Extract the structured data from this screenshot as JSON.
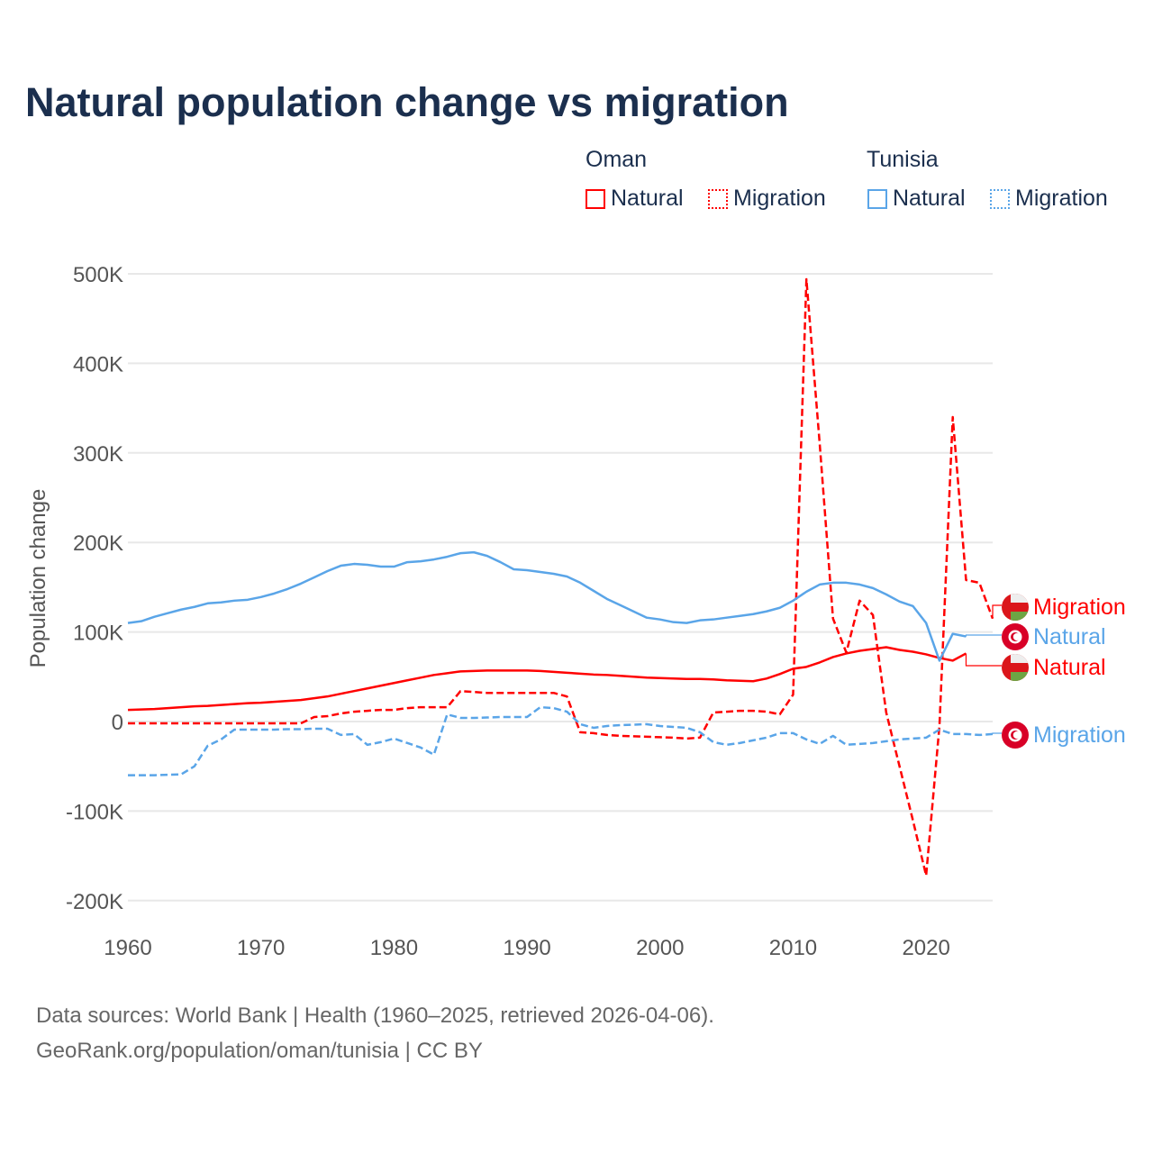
{
  "title": "Natural population change vs migration",
  "legend": {
    "groups": [
      {
        "name": "Oman",
        "color": "#ff0000",
        "items": [
          "Natural",
          "Migration"
        ]
      },
      {
        "name": "Tunisia",
        "color": "#5aa5e8",
        "items": [
          "Natural",
          "Migration"
        ]
      }
    ]
  },
  "footer": {
    "line1": "Data sources: World Bank | Health (1960–2025, retrieved 2026-04-06).",
    "line2": "GeoRank.org/population/oman/tunisia | CC BY"
  },
  "chart_data": {
    "type": "line",
    "title": "Natural population change vs migration",
    "xlabel": "",
    "ylabel": "Population change",
    "xlim": [
      1960,
      2025
    ],
    "ylim": [
      -200000,
      500000
    ],
    "xticks": [
      1960,
      1970,
      1980,
      1990,
      2000,
      2010,
      2020
    ],
    "yticks": [
      {
        "v": -200000,
        "label": "-200K"
      },
      {
        "v": -100000,
        "label": "-100K"
      },
      {
        "v": 0,
        "label": "0"
      },
      {
        "v": 100000,
        "label": "100K"
      },
      {
        "v": 200000,
        "label": "200K"
      },
      {
        "v": 300000,
        "label": "300K"
      },
      {
        "v": 400000,
        "label": "400K"
      },
      {
        "v": 500000,
        "label": "500K"
      }
    ],
    "grid": true,
    "legend_placement": "top-right",
    "series": [
      {
        "name": "Oman Natural",
        "country": "Oman",
        "label": "Natural",
        "color": "#ff0000",
        "dash": false,
        "flag": "oman",
        "start": 1960,
        "values": [
          13,
          13.5,
          14,
          15,
          16,
          17,
          17.5,
          18.5,
          19.5,
          20.5,
          21,
          22,
          23,
          24,
          26,
          28,
          31,
          34,
          37,
          40,
          43,
          46,
          49,
          52,
          54,
          56,
          56.5,
          57,
          57,
          57,
          57,
          56.5,
          55.5,
          54.5,
          53.5,
          52.5,
          52,
          51,
          50,
          49,
          48.5,
          48,
          47.5,
          47.5,
          47,
          46,
          45.5,
          45,
          48,
          53,
          59,
          61,
          66,
          72,
          76,
          79,
          81,
          83,
          80,
          78,
          75,
          71,
          68,
          76
        ]
      },
      {
        "name": "Oman Migration",
        "country": "Oman",
        "label": "Migration",
        "color": "#ff0000",
        "dash": true,
        "flag": "oman",
        "start": 1960,
        "values": [
          -2,
          -2,
          -2,
          -2,
          -2,
          -2,
          -2,
          -2,
          -2,
          -2,
          -2,
          -2,
          -2,
          -2,
          5,
          6,
          9,
          11,
          12,
          13,
          13,
          15,
          16,
          16,
          16,
          34,
          33,
          32,
          32,
          32,
          32,
          32,
          32,
          28,
          -12,
          -13,
          -15,
          -16,
          -16.5,
          -17,
          -17.5,
          -18,
          -19,
          -18,
          10,
          11,
          12,
          12,
          11,
          8,
          30,
          494,
          310,
          115,
          77,
          135,
          119,
          10,
          -50,
          -110,
          -172,
          -5,
          340,
          158,
          155,
          115
        ]
      },
      {
        "name": "Tunisia Natural",
        "country": "Tunisia",
        "label": "Natural",
        "color": "#5aa5e8",
        "dash": false,
        "flag": "tunisia",
        "start": 1960,
        "values": [
          110,
          112,
          117,
          121,
          125,
          128,
          132,
          133,
          135,
          136,
          139,
          143,
          148,
          154,
          161,
          168,
          174,
          176,
          175,
          173,
          173,
          178,
          179,
          181,
          184,
          188,
          189,
          185,
          178,
          170,
          169,
          167,
          165,
          162,
          155,
          146,
          137,
          130,
          123,
          116,
          114,
          111,
          110,
          113,
          114,
          116,
          118,
          120,
          123,
          127,
          135,
          145,
          153,
          155,
          155,
          153,
          149,
          142,
          134,
          129,
          110,
          68,
          98,
          95
        ]
      },
      {
        "name": "Tunisia Migration",
        "country": "Tunisia",
        "label": "Migration",
        "color": "#5aa5e8",
        "dash": true,
        "flag": "tunisia",
        "start": 1960,
        "values": [
          -60,
          -60,
          -60,
          -59.5,
          -59,
          -50,
          -27,
          -20,
          -9,
          -9,
          -9,
          -9,
          -8.5,
          -8.5,
          -8,
          -8,
          -15,
          -14,
          -26,
          -23,
          -19,
          -24,
          -29,
          -37,
          8,
          4,
          4,
          4.5,
          5,
          5,
          5,
          16,
          15,
          11,
          -3,
          -7,
          -5,
          -4,
          -3.5,
          -3,
          -5,
          -6,
          -7,
          -12,
          -23,
          -26,
          -24,
          -21,
          -18,
          -13,
          -13,
          -20,
          -25,
          -16,
          -26,
          -25,
          -24,
          -22,
          -20,
          -19,
          -18,
          -9,
          -14,
          -14,
          -15,
          -14
        ]
      }
    ],
    "value_unit": "thousands"
  }
}
